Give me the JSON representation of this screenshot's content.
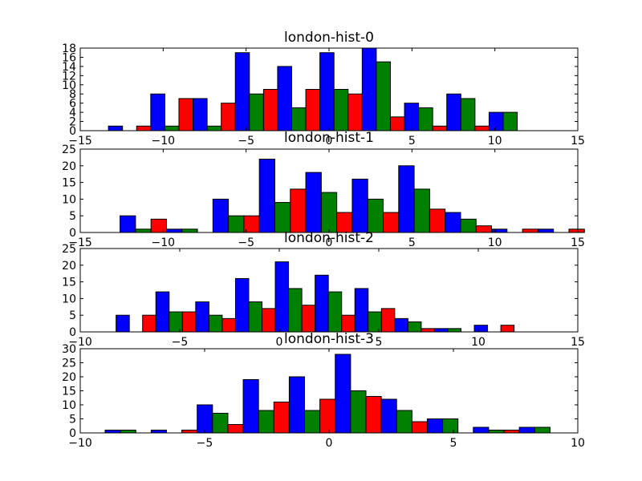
{
  "chart_data": [
    {
      "type": "bar",
      "title": "london-hist-0",
      "xlim": [
        -15,
        15
      ],
      "ylim": [
        0,
        18
      ],
      "xticks": [
        -15,
        -10,
        -5,
        0,
        5,
        10,
        15
      ],
      "yticks": [
        0,
        2,
        4,
        6,
        8,
        10,
        12,
        14,
        16,
        18
      ],
      "bin_edges": [
        -13.3,
        -10.75,
        -8.2,
        -5.65,
        -3.1,
        -0.55,
        2.0,
        4.55,
        7.1,
        9.65,
        12.2
      ],
      "series": [
        {
          "color": "#0000ff",
          "values": [
            1,
            8,
            7,
            17,
            14,
            17,
            18,
            6,
            8,
            4
          ]
        },
        {
          "color": "#008000",
          "values": [
            0,
            1,
            1,
            8,
            5,
            9,
            15,
            5,
            7,
            4
          ]
        },
        {
          "color": "#ff0000",
          "values": [
            1,
            7,
            6,
            9,
            9,
            8,
            3,
            1,
            1,
            0
          ]
        }
      ]
    },
    {
      "type": "bar",
      "title": "london-hist-1",
      "xlim": [
        -15,
        15
      ],
      "ylim": [
        0,
        25
      ],
      "xticks": [
        -15,
        -10,
        -5,
        0,
        5,
        10,
        15
      ],
      "yticks": [
        0,
        5,
        10,
        15,
        20,
        25
      ],
      "bin_edges": [
        -12.6,
        -9.8,
        -7.0,
        -4.2,
        -1.4,
        1.4,
        4.2,
        7.0,
        9.8,
        12.6,
        15.4
      ],
      "series": [
        {
          "color": "#0000ff",
          "values": [
            5,
            1,
            10,
            22,
            18,
            16,
            20,
            6,
            1,
            1
          ]
        },
        {
          "color": "#008000",
          "values": [
            1,
            1,
            5,
            9,
            12,
            10,
            13,
            4,
            0,
            0
          ]
        },
        {
          "color": "#ff0000",
          "values": [
            4,
            0,
            5,
            13,
            6,
            6,
            7,
            2,
            1,
            1
          ]
        }
      ]
    },
    {
      "type": "bar",
      "title": "london-hist-2",
      "xlim": [
        -10,
        15
      ],
      "ylim": [
        0,
        25
      ],
      "xticks": [
        -10,
        -5,
        0,
        5,
        10,
        15
      ],
      "yticks": [
        0,
        5,
        10,
        15,
        20,
        25
      ],
      "bin_edges": [
        -8.2,
        -6.2,
        -4.2,
        -2.2,
        -0.2,
        1.8,
        3.8,
        5.8,
        7.8,
        9.8,
        11.8
      ],
      "series": [
        {
          "color": "#0000ff",
          "values": [
            5,
            12,
            9,
            16,
            21,
            17,
            13,
            4,
            1,
            2
          ]
        },
        {
          "color": "#008000",
          "values": [
            0,
            6,
            5,
            9,
            13,
            12,
            6,
            3,
            1,
            0
          ]
        },
        {
          "color": "#ff0000",
          "values": [
            5,
            6,
            4,
            7,
            8,
            5,
            7,
            1,
            0,
            2
          ]
        }
      ]
    },
    {
      "type": "bar",
      "title": "london-hist-3",
      "xlim": [
        -10,
        10
      ],
      "ylim": [
        0,
        30
      ],
      "xticks": [
        -10,
        -5,
        0,
        5,
        10
      ],
      "yticks": [
        0,
        5,
        10,
        15,
        20,
        25,
        30
      ],
      "bin_edges": [
        -9.0,
        -7.15,
        -5.3,
        -3.45,
        -1.6,
        0.25,
        2.1,
        3.95,
        5.8,
        7.65,
        9.5
      ],
      "series": [
        {
          "color": "#0000ff",
          "values": [
            1,
            1,
            10,
            19,
            20,
            28,
            12,
            5,
            2,
            2
          ]
        },
        {
          "color": "#008000",
          "values": [
            1,
            0,
            7,
            8,
            8,
            15,
            8,
            5,
            1,
            2
          ]
        },
        {
          "color": "#ff0000",
          "values": [
            0,
            1,
            3,
            11,
            12,
            13,
            4,
            0,
            1,
            0
          ]
        }
      ]
    }
  ]
}
